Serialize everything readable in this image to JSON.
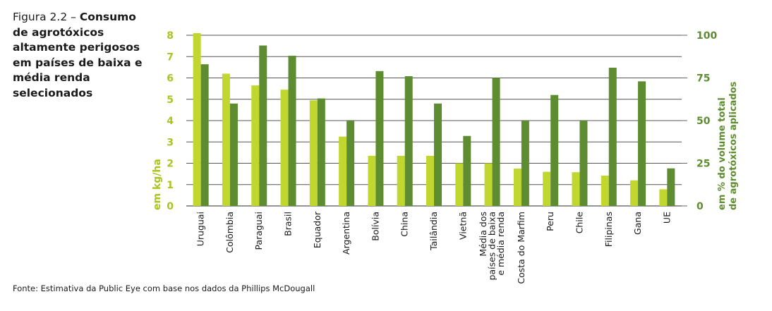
{
  "figure": {
    "label": "Figura 2.2 –",
    "title": "Consumo de agrotóxicos altamente perigosos em países de baixa e média renda selecionados",
    "source": "Fonte: Estimativa da Public Eye com base nos dados da Phillips McDougall"
  },
  "chart_data": {
    "type": "bar",
    "categories": [
      "Uruguai",
      "Colômbia",
      "Paraguai",
      "Brasil",
      "Equador",
      "Argentina",
      "Bolívia",
      "China",
      "Tailândia",
      "Vietnã",
      "Média dos países de baixa e média renda",
      "Costa do Marfim",
      "Peru",
      "Chile",
      "Filipinas",
      "Gana",
      "UE"
    ],
    "category_lines": [
      [
        "Uruguai"
      ],
      [
        "Colômbia"
      ],
      [
        "Paraguai"
      ],
      [
        "Brasil"
      ],
      [
        "Equador"
      ],
      [
        "Argentina"
      ],
      [
        "Bolívia"
      ],
      [
        "China"
      ],
      [
        "Tailândia"
      ],
      [
        "Vietnã"
      ],
      [
        "Média dos",
        "países de baixa",
        "e média renda"
      ],
      [
        "Costa do Marfim"
      ],
      [
        "Peru"
      ],
      [
        "Chile"
      ],
      [
        "Filipinas"
      ],
      [
        "Gana"
      ],
      [
        "UE"
      ]
    ],
    "series": [
      {
        "axis": "left",
        "color": "#c1d730",
        "values": [
          8.1,
          6.2,
          5.65,
          5.45,
          4.95,
          3.25,
          2.35,
          2.35,
          2.35,
          2.0,
          2.0,
          1.75,
          1.6,
          1.58,
          1.42,
          1.2,
          0.78
        ]
      },
      {
        "axis": "right",
        "color": "#5e8c31",
        "values": [
          83,
          60,
          94,
          88,
          63,
          50,
          79,
          76,
          60,
          41,
          75,
          50,
          65,
          50,
          81,
          73,
          22
        ]
      }
    ],
    "ylabel": "em kg/ha",
    "ylim": [
      0,
      8
    ],
    "yticks": [
      0,
      1,
      2,
      3,
      4,
      5,
      6,
      7,
      8
    ],
    "y2label": [
      "em % do volume total",
      "de agrotóxicos aplicados"
    ],
    "y2lim": [
      0,
      100
    ],
    "y2ticks": [
      0,
      25,
      50,
      75,
      100
    ],
    "grid": true,
    "left_axis_color": "#a8c520",
    "right_axis_color": "#5e8c31"
  }
}
